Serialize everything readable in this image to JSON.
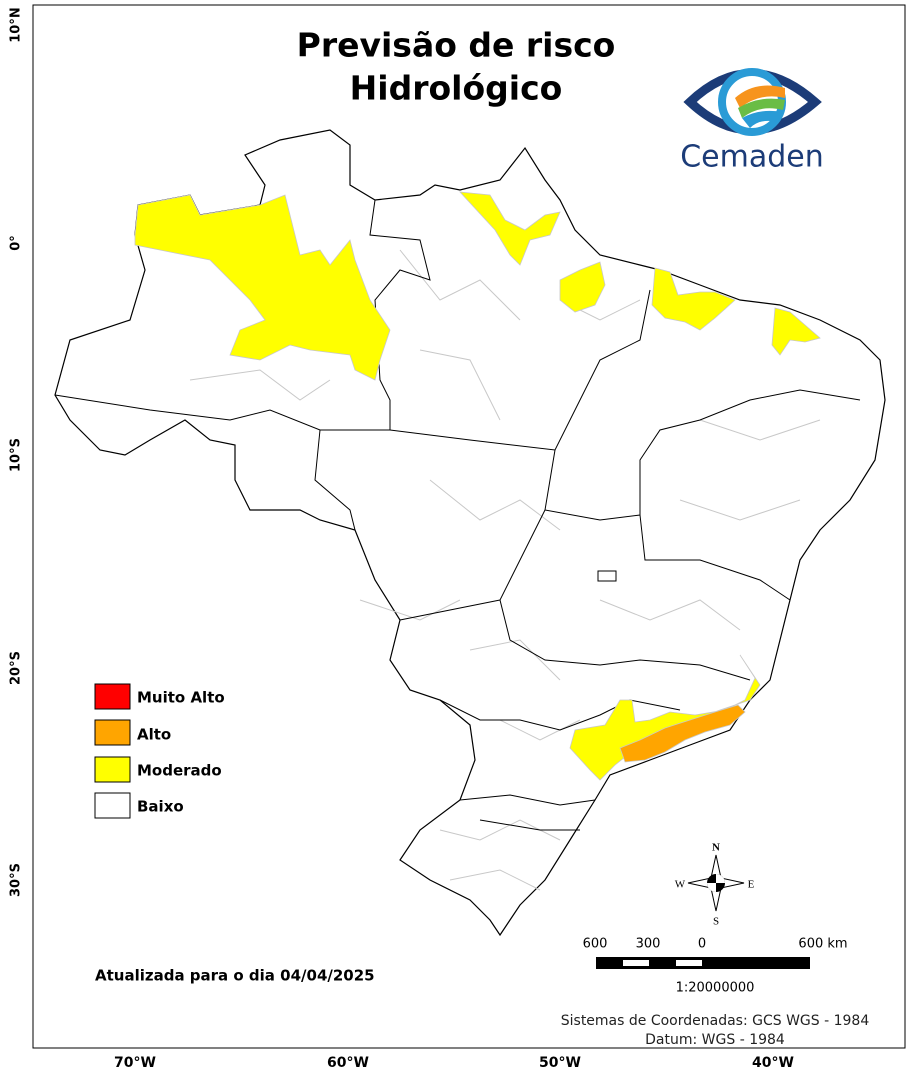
{
  "title": {
    "lines": [
      "Previsão de risco",
      "Hidrológico"
    ]
  },
  "logo": {
    "text": "Cemaden"
  },
  "axes": {
    "latitude": [
      "10°N",
      "0°",
      "10°S",
      "20°S",
      "30°S"
    ],
    "longitude": [
      "70°W",
      "60°W",
      "50°W",
      "40°W"
    ]
  },
  "legend": {
    "items": [
      {
        "label": "Muito Alto",
        "color": "#ff0000"
      },
      {
        "label": "Alto",
        "color": "#ffa500"
      },
      {
        "label": "Moderado",
        "color": "#ffff00"
      },
      {
        "label": "Baixo",
        "color": "#ffffff"
      }
    ]
  },
  "update_note": "Atualizada para o dia 04/04/2025",
  "compass": {
    "n": "N",
    "s": "S",
    "e": "E",
    "w": "W"
  },
  "scale_bar": {
    "labels": [
      "600",
      "300",
      "0",
      "600 km"
    ],
    "ratio": "1:20000000"
  },
  "credits": [
    "Sistemas de Coordenadas: GCS WGS - 1984",
    "Datum: WGS - 1984"
  ]
}
